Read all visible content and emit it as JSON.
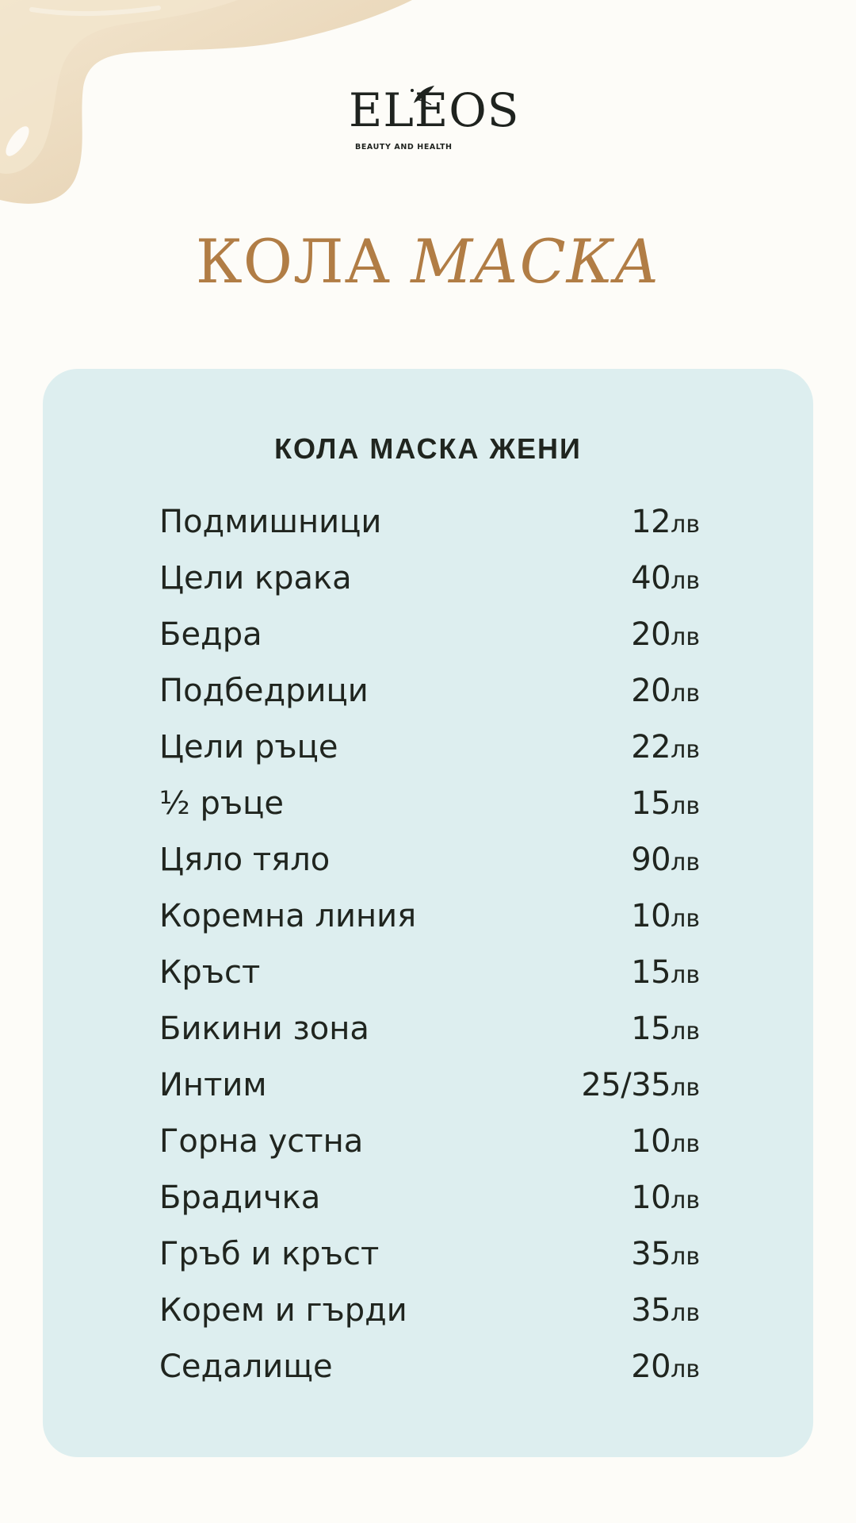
{
  "logo": {
    "wordmark": "ELEOS",
    "tagline": "BEAUTY AND HEALTH"
  },
  "title": {
    "plain": "КОЛА",
    "italic": "МАСКА"
  },
  "card": {
    "heading": "КОЛА МАСКА ЖЕНИ"
  },
  "currency": "лв",
  "services": [
    {
      "name": "Подмишници",
      "price": "12"
    },
    {
      "name": "Цели крака",
      "price": "40"
    },
    {
      "name": "Бедра",
      "price": "20"
    },
    {
      "name": "Подбедрици",
      "price": "20"
    },
    {
      "name": "Цели ръце",
      "price": "22"
    },
    {
      "name": "½ ръце",
      "price": "15"
    },
    {
      "name": "Цяло тяло",
      "price": "90"
    },
    {
      "name": "Коремна линия",
      "price": "10"
    },
    {
      "name": "Кръст",
      "price": "15"
    },
    {
      "name": "Бикини зона",
      "price": "15"
    },
    {
      "name": "Интим",
      "price": "25/35"
    },
    {
      "name": "Горна устна",
      "price": "10"
    },
    {
      "name": "Брадичка",
      "price": "10"
    },
    {
      "name": "Гръб и кръст",
      "price": "35"
    },
    {
      "name": "Корем и гърди",
      "price": "35"
    },
    {
      "name": "Седалище",
      "price": "20"
    }
  ],
  "colors": {
    "background": "#fdfcf8",
    "title": "#b17d45",
    "card": "#ddeeef",
    "text": "#20251f",
    "cream": "#eedfc5"
  }
}
